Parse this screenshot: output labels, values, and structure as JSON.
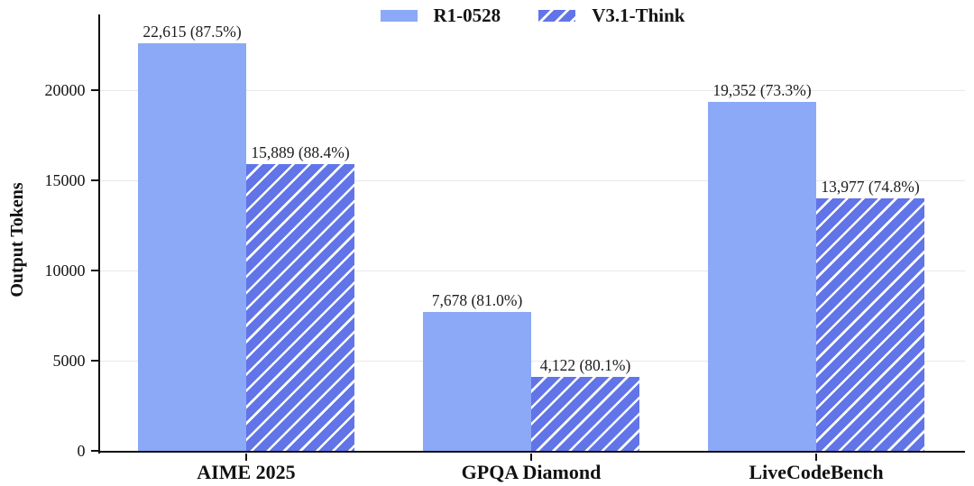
{
  "chart_data": {
    "type": "bar",
    "title": "",
    "ylabel": "Output Tokens",
    "xlabel": "",
    "categories": [
      "AIME 2025",
      "GPQA Diamond",
      "LiveCodeBench"
    ],
    "series": [
      {
        "name": "R1-0528",
        "style": "solid",
        "values": [
          22615,
          7678,
          19352
        ],
        "accuracy_pct": [
          87.5,
          81.0,
          73.3
        ],
        "bar_labels": [
          "22,615 (87.5%)",
          "7,678 (81.0%)",
          "19,352 (73.3%)"
        ]
      },
      {
        "name": "V3.1-Think",
        "style": "hatched",
        "values": [
          15889,
          4122,
          13977
        ],
        "accuracy_pct": [
          88.4,
          80.1,
          74.8
        ],
        "bar_labels": [
          "15,889 (88.4%)",
          "4,122 (80.1%)",
          "13,977 (74.8%)"
        ]
      }
    ],
    "yticks": [
      0,
      5000,
      10000,
      15000,
      20000
    ],
    "ylim": [
      0,
      24200
    ],
    "grid": "horizontal, light gray",
    "legend_position": "top center",
    "colors": {
      "solid_fill": "#8CA9F7",
      "hatch_fill": "#6175E8",
      "hatch_stripe": "#FFFFFF",
      "grid": "#E8E8E8",
      "axis": "#111111"
    }
  }
}
